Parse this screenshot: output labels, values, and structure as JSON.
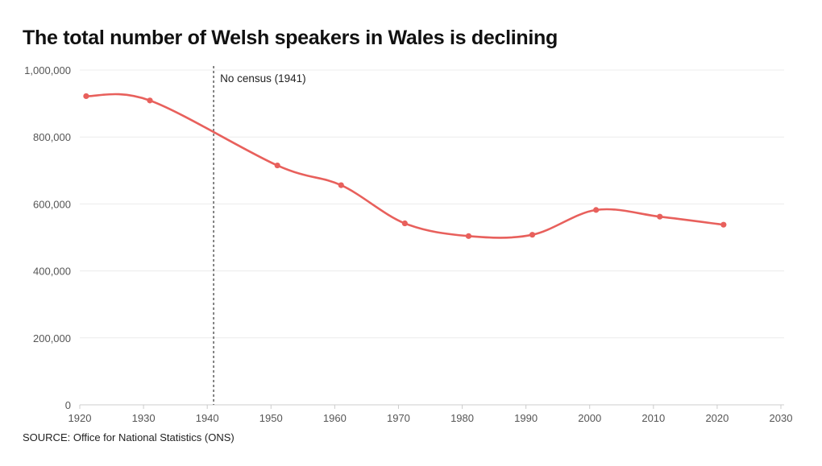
{
  "chart_data": {
    "type": "line",
    "title": "The total number of Welsh speakers in Wales is declining",
    "source": "SOURCE: Office for National Statistics (ONS)",
    "xlabel": "",
    "ylabel": "",
    "xlim": [
      1920,
      2030
    ],
    "ylim": [
      0,
      1000000
    ],
    "x_ticks": [
      1920,
      1930,
      1940,
      1950,
      1960,
      1970,
      1980,
      1990,
      2000,
      2010,
      2020,
      2030
    ],
    "y_ticks": [
      0,
      200000,
      400000,
      600000,
      800000,
      1000000
    ],
    "y_tick_labels": [
      "0",
      "200,000",
      "400,000",
      "600,000",
      "800,000",
      "1,000,000"
    ],
    "grid": true,
    "series": [
      {
        "name": "Welsh speakers",
        "color": "#e8605c",
        "x": [
          1921,
          1931,
          1951,
          1961,
          1971,
          1981,
          1991,
          2001,
          2011,
          2021
        ],
        "values": [
          922000,
          909000,
          715000,
          656000,
          542000,
          504000,
          508000,
          582000,
          562000,
          538000
        ]
      }
    ],
    "annotations": [
      {
        "type": "vline",
        "x": 1941,
        "label": "No census (1941)",
        "color": "#666666"
      }
    ]
  },
  "colors": {
    "grid": "#ececec",
    "axis": "#cccccc"
  }
}
